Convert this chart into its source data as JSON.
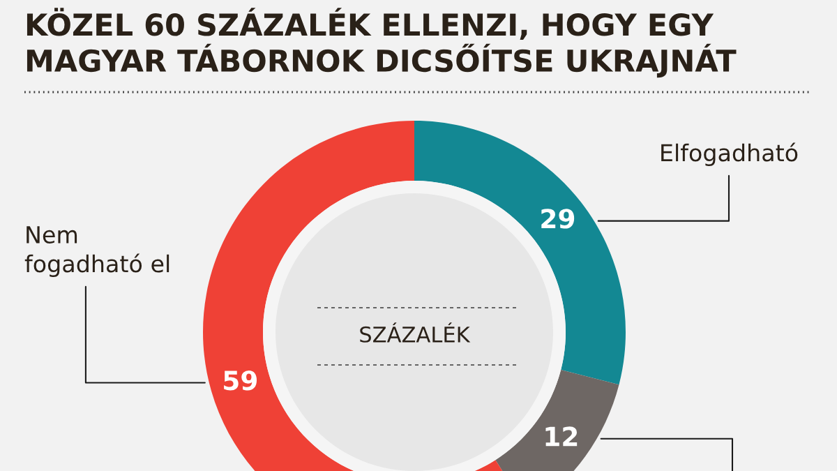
{
  "chart_data": {
    "type": "donut",
    "title": "KÖZEL 60 SZÁZALÉK ELLENZI, HOGY EGY MAGYAR TÁBORNOK DICSŐÍTSE UKRAJNÁT",
    "categories": [
      "Elfogadható",
      null,
      "Nem fogadható el"
    ],
    "values": [
      29,
      12,
      59
    ],
    "colors": [
      "#138893",
      "#6e6764",
      "#ef4136"
    ],
    "data_labels": true,
    "annotations": [
      "SZÁZALÉK"
    ]
  }
}
